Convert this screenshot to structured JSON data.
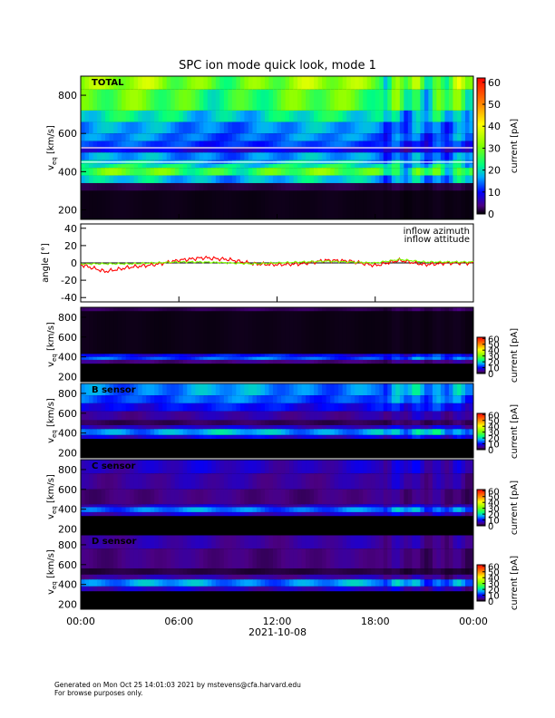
{
  "figure": {
    "title": "SPC ion mode quick look, mode 1",
    "date_label": "2021-10-08",
    "footer_line1": "Generated on Mon Oct 25 14:01:03 2021 by mstevens@cfa.harvard.edu",
    "footer_line2": "For browse purposes only."
  },
  "chart_data": [
    {
      "type": "heatmap",
      "panel": "total",
      "label": "TOTAL",
      "ylabel": "v_eq [km/s]",
      "yticks": [
        200,
        400,
        600,
        800
      ],
      "ylim": [
        150,
        900
      ],
      "colorbar": {
        "label": "current [pA]",
        "ticks": [
          0,
          10,
          20,
          30,
          40,
          50,
          60
        ],
        "range": [
          0,
          62
        ]
      },
      "x_ticks": [
        "00:00",
        "06:00",
        "12:00",
        "18:00",
        "00:00"
      ],
      "bands": [
        {
          "v": [
            830,
            900
          ],
          "level": 26
        },
        {
          "v": [
            720,
            830
          ],
          "level": 22
        },
        {
          "v": [
            660,
            720
          ],
          "level": 16
        },
        {
          "v": [
            600,
            660
          ],
          "level": 12
        },
        {
          "v": [
            560,
            600
          ],
          "level": 11
        },
        {
          "v": [
            530,
            560
          ],
          "level": 9
        },
        {
          "v": [
            500,
            530
          ],
          "level": 6
        },
        {
          "v": [
            460,
            500
          ],
          "level": 12
        },
        {
          "v": [
            440,
            460
          ],
          "level": 14
        },
        {
          "v": [
            420,
            440
          ],
          "level": 17
        },
        {
          "v": [
            380,
            420
          ],
          "level": 22
        },
        {
          "v": [
            340,
            380
          ],
          "level": 14
        },
        {
          "v": [
            300,
            340
          ],
          "level": 1.5
        },
        {
          "v": [
            150,
            300
          ],
          "level": 0.5
        }
      ],
      "markers_at_v": [
        450,
        525
      ]
    },
    {
      "type": "line",
      "panel": "angle",
      "ylabel": "angle [°]",
      "yticks": [
        -40,
        -20,
        0,
        20,
        40
      ],
      "ylim": [
        -45,
        45
      ],
      "x_hours": [
        0,
        1.5,
        3,
        4.5,
        6,
        7.5,
        9,
        10.5,
        12,
        13.5,
        15,
        16.5,
        18,
        19.5,
        21,
        22.5,
        24
      ],
      "series": [
        {
          "name": "inflow azimuth",
          "color": "#ff0000",
          "values": [
            -2,
            -10,
            -5,
            -2,
            3,
            6,
            4,
            -1,
            -2,
            -1,
            3,
            2,
            -3,
            3,
            -2,
            0,
            0
          ]
        },
        {
          "name": "inflow attitude",
          "color": "#7cfc00",
          "values": [
            -1,
            -1,
            -1,
            0,
            1,
            1,
            0,
            -1,
            0,
            1,
            2,
            1,
            0,
            4,
            1,
            1,
            1
          ]
        }
      ]
    },
    {
      "type": "heatmap",
      "panel": "A",
      "label": "",
      "ylabel": "v_eq [km/s]",
      "yticks": [
        200,
        400,
        600,
        800
      ],
      "ylim": [
        150,
        900
      ],
      "colorbar": {
        "label": "current [pA]",
        "ticks": [
          0,
          10,
          20,
          30,
          40,
          50,
          60
        ],
        "range": [
          0,
          62
        ]
      },
      "bands": [
        {
          "v": [
            860,
            900
          ],
          "level": 2
        },
        {
          "v": [
            430,
            860
          ],
          "level": 0.5
        },
        {
          "v": [
            400,
            430
          ],
          "level": 7
        },
        {
          "v": [
            370,
            400
          ],
          "level": 10
        },
        {
          "v": [
            330,
            370
          ],
          "level": 3
        },
        {
          "v": [
            150,
            330
          ],
          "level": 0
        }
      ]
    },
    {
      "type": "heatmap",
      "panel": "B",
      "label": "B sensor",
      "ylabel": "v_eq [km/s]",
      "yticks": [
        200,
        400,
        600,
        800
      ],
      "ylim": [
        150,
        900
      ],
      "colorbar": {
        "label": "current [pA]",
        "ticks": [
          0,
          10,
          20,
          30,
          40,
          50,
          60
        ],
        "range": [
          0,
          62
        ]
      },
      "bands": [
        {
          "v": [
            780,
            900
          ],
          "level": 12
        },
        {
          "v": [
            700,
            780
          ],
          "level": 10
        },
        {
          "v": [
            620,
            700
          ],
          "level": 7
        },
        {
          "v": [
            530,
            620
          ],
          "level": 4
        },
        {
          "v": [
            480,
            530
          ],
          "level": 2
        },
        {
          "v": [
            440,
            480
          ],
          "level": 5
        },
        {
          "v": [
            380,
            440
          ],
          "level": 13
        },
        {
          "v": [
            340,
            380
          ],
          "level": 6
        },
        {
          "v": [
            150,
            340
          ],
          "level": 0
        }
      ]
    },
    {
      "type": "heatmap",
      "panel": "C",
      "label": "C sensor",
      "ylabel": "v_eq [km/s]",
      "yticks": [
        200,
        400,
        600,
        800
      ],
      "ylim": [
        150,
        900
      ],
      "colorbar": {
        "label": "current [pA]",
        "ticks": [
          0,
          10,
          20,
          30,
          40,
          50,
          60
        ],
        "range": [
          0,
          62
        ]
      },
      "bands": [
        {
          "v": [
            760,
            900
          ],
          "level": 5
        },
        {
          "v": [
            600,
            760
          ],
          "level": 4
        },
        {
          "v": [
            450,
            600
          ],
          "level": 3
        },
        {
          "v": [
            420,
            450
          ],
          "level": 5
        },
        {
          "v": [
            370,
            420
          ],
          "level": 11
        },
        {
          "v": [
            330,
            370
          ],
          "level": 5
        },
        {
          "v": [
            150,
            330
          ],
          "level": 0
        }
      ]
    },
    {
      "type": "heatmap",
      "panel": "D",
      "label": "D sensor",
      "ylabel": "v_eq [km/s]",
      "yticks": [
        200,
        400,
        600,
        800
      ],
      "ylim": [
        150,
        900
      ],
      "colorbar": {
        "label": "current [pA]",
        "ticks": [
          0,
          10,
          20,
          30,
          40,
          50,
          60
        ],
        "range": [
          0,
          62
        ]
      },
      "bands": [
        {
          "v": [
            760,
            900
          ],
          "level": 4
        },
        {
          "v": [
            560,
            760
          ],
          "level": 3
        },
        {
          "v": [
            500,
            560
          ],
          "level": 1.5
        },
        {
          "v": [
            450,
            500
          ],
          "level": 4
        },
        {
          "v": [
            380,
            450
          ],
          "level": 12
        },
        {
          "v": [
            330,
            380
          ],
          "level": 5
        },
        {
          "v": [
            150,
            330
          ],
          "level": 0
        }
      ]
    }
  ]
}
